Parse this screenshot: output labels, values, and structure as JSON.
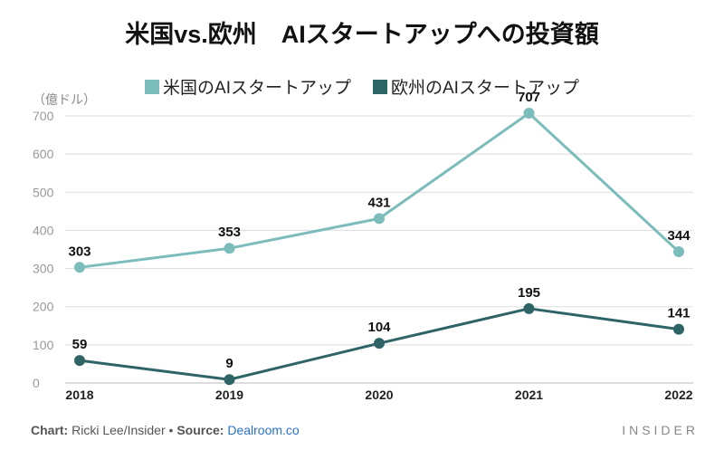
{
  "title": "米国vs.欧州　AIスタートアップへの投資額",
  "unit_label": "（億ドル）",
  "footer": {
    "chart_label": "Chart:",
    "author": "Ricki Lee/Insider",
    "separator": "•",
    "source_label": "Source:",
    "source_name": "Dealroom.co"
  },
  "brand": "INSIDER",
  "colors": {
    "us": "#7cbcbb",
    "eu": "#2f6467",
    "grid": "#dddddd",
    "axis_text": "#999999",
    "label": "#111111"
  },
  "chart_data": {
    "type": "line",
    "title": "米国vs.欧州　AIスタートアップへの投資額",
    "x": [
      "2018",
      "2019",
      "2020",
      "2021",
      "2022"
    ],
    "ylabel": "（億ドル）",
    "ylim": [
      0,
      700
    ],
    "yticks": [
      0,
      100,
      200,
      300,
      400,
      500,
      600,
      700
    ],
    "grid": true,
    "legend_position": "top-center",
    "series": [
      {
        "name": "米国のAIスタートアップ",
        "values": [
          303,
          353,
          431,
          707,
          344
        ]
      },
      {
        "name": "欧州のAIスタートアップ",
        "values": [
          59,
          9,
          104,
          195,
          141
        ]
      }
    ]
  }
}
